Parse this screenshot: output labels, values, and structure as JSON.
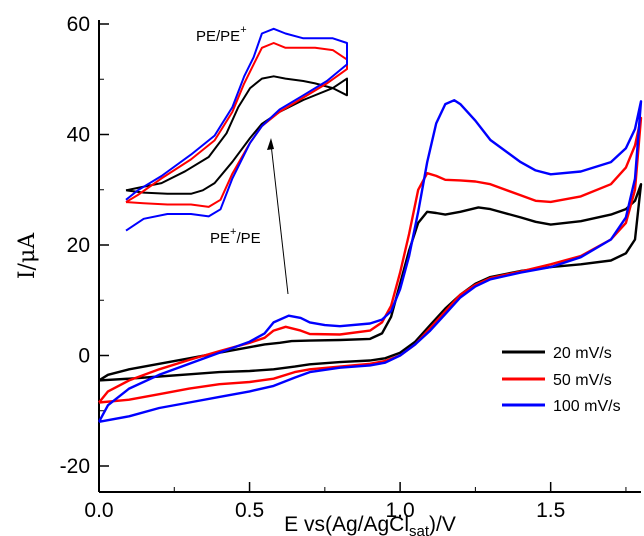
{
  "chart_data": [
    {
      "type": "line",
      "title": "",
      "xlabel": "E vs(Ag/AgCl",
      "xlabel_sub": "sat",
      "xlabel_end": ")/V",
      "ylabel": "I/μA",
      "xlim": [
        0.0,
        1.8
      ],
      "ylim": [
        -20,
        60
      ],
      "xticks": [
        "0.0",
        "0.5",
        "1.0",
        "1.5"
      ],
      "yticks": [
        "-20",
        "0",
        "20",
        "40",
        "60"
      ],
      "grid": false,
      "legend_position": "right-middle",
      "series": [
        {
          "name": "20 mV/s",
          "color": "#000000",
          "points": [
            [
              0.0,
              -4.5
            ],
            [
              0.1,
              -4.2
            ],
            [
              0.2,
              -3.8
            ],
            [
              0.3,
              -3.4
            ],
            [
              0.4,
              -3.0
            ],
            [
              0.5,
              -2.8
            ],
            [
              0.58,
              -2.5
            ],
            [
              0.65,
              -2.0
            ],
            [
              0.7,
              -1.6
            ],
            [
              0.8,
              -1.2
            ],
            [
              0.9,
              -0.9
            ],
            [
              0.95,
              -0.5
            ],
            [
              1.0,
              0.5
            ],
            [
              1.05,
              2.5
            ],
            [
              1.1,
              5.5
            ],
            [
              1.15,
              8.5
            ],
            [
              1.2,
              11.0
            ],
            [
              1.25,
              13.0
            ],
            [
              1.3,
              14.2
            ],
            [
              1.4,
              15.3
            ],
            [
              1.5,
              16.0
            ],
            [
              1.6,
              16.5
            ],
            [
              1.7,
              17.2
            ],
            [
              1.75,
              18.5
            ],
            [
              1.78,
              21.0
            ],
            [
              1.8,
              31.0
            ],
            [
              1.78,
              28.0
            ],
            [
              1.75,
              26.5
            ],
            [
              1.7,
              25.5
            ],
            [
              1.6,
              24.3
            ],
            [
              1.5,
              23.7
            ],
            [
              1.45,
              24.2
            ],
            [
              1.4,
              25.0
            ],
            [
              1.3,
              26.5
            ],
            [
              1.26,
              26.8
            ],
            [
              1.2,
              26.0
            ],
            [
              1.15,
              25.5
            ],
            [
              1.12,
              25.8
            ],
            [
              1.09,
              26.0
            ],
            [
              1.06,
              24.0
            ],
            [
              1.03,
              19.0
            ],
            [
              1.0,
              13.0
            ],
            [
              0.97,
              7.0
            ],
            [
              0.94,
              4.0
            ],
            [
              0.9,
              3.0
            ],
            [
              0.8,
              2.8
            ],
            [
              0.7,
              2.7
            ],
            [
              0.64,
              2.6
            ],
            [
              0.6,
              2.3
            ],
            [
              0.55,
              2.0
            ],
            [
              0.5,
              1.5
            ],
            [
              0.4,
              0.5
            ],
            [
              0.3,
              -0.5
            ],
            [
              0.2,
              -1.5
            ],
            [
              0.1,
              -2.5
            ],
            [
              0.03,
              -3.5
            ],
            [
              0.0,
              -4.5
            ]
          ]
        },
        {
          "name": "50 mV/s",
          "color": "#ff0000",
          "points": [
            [
              0.0,
              -8.5
            ],
            [
              0.1,
              -8.0
            ],
            [
              0.2,
              -7.0
            ],
            [
              0.3,
              -6.0
            ],
            [
              0.4,
              -5.2
            ],
            [
              0.5,
              -4.8
            ],
            [
              0.58,
              -4.2
            ],
            [
              0.65,
              -3.0
            ],
            [
              0.7,
              -2.5
            ],
            [
              0.8,
              -2.0
            ],
            [
              0.9,
              -1.5
            ],
            [
              0.95,
              -1.0
            ],
            [
              1.0,
              0.0
            ],
            [
              1.05,
              2.0
            ],
            [
              1.1,
              5.0
            ],
            [
              1.15,
              8.0
            ],
            [
              1.2,
              11.0
            ],
            [
              1.25,
              12.8
            ],
            [
              1.3,
              14.0
            ],
            [
              1.4,
              15.2
            ],
            [
              1.5,
              16.5
            ],
            [
              1.6,
              18.0
            ],
            [
              1.7,
              21.0
            ],
            [
              1.75,
              24.0
            ],
            [
              1.78,
              30.0
            ],
            [
              1.8,
              43.0
            ],
            [
              1.78,
              38.0
            ],
            [
              1.75,
              34.0
            ],
            [
              1.7,
              31.0
            ],
            [
              1.6,
              28.8
            ],
            [
              1.5,
              27.8
            ],
            [
              1.45,
              28.0
            ],
            [
              1.4,
              29.0
            ],
            [
              1.3,
              31.0
            ],
            [
              1.25,
              31.5
            ],
            [
              1.2,
              31.7
            ],
            [
              1.15,
              31.8
            ],
            [
              1.12,
              32.5
            ],
            [
              1.09,
              33.0
            ],
            [
              1.06,
              30.0
            ],
            [
              1.03,
              22.0
            ],
            [
              1.0,
              15.0
            ],
            [
              0.97,
              9.0
            ],
            [
              0.94,
              6.0
            ],
            [
              0.9,
              4.5
            ],
            [
              0.8,
              3.8
            ],
            [
              0.7,
              3.9
            ],
            [
              0.67,
              4.5
            ],
            [
              0.62,
              5.2
            ],
            [
              0.58,
              4.5
            ],
            [
              0.55,
              3.2
            ],
            [
              0.5,
              2.3
            ],
            [
              0.4,
              0.8
            ],
            [
              0.3,
              -0.8
            ],
            [
              0.2,
              -2.5
            ],
            [
              0.1,
              -4.5
            ],
            [
              0.03,
              -6.5
            ],
            [
              0.0,
              -8.5
            ]
          ]
        },
        {
          "name": "100 mV/s",
          "color": "#0000ff",
          "points": [
            [
              0.0,
              -12.0
            ],
            [
              0.1,
              -11.0
            ],
            [
              0.2,
              -9.5
            ],
            [
              0.3,
              -8.5
            ],
            [
              0.4,
              -7.5
            ],
            [
              0.5,
              -6.5
            ],
            [
              0.58,
              -5.5
            ],
            [
              0.65,
              -4.0
            ],
            [
              0.7,
              -3.0
            ],
            [
              0.8,
              -2.2
            ],
            [
              0.9,
              -1.8
            ],
            [
              0.95,
              -1.3
            ],
            [
              1.0,
              0.0
            ],
            [
              1.05,
              2.0
            ],
            [
              1.1,
              4.5
            ],
            [
              1.15,
              7.5
            ],
            [
              1.2,
              10.5
            ],
            [
              1.25,
              12.5
            ],
            [
              1.3,
              13.8
            ],
            [
              1.4,
              15.0
            ],
            [
              1.5,
              16.0
            ],
            [
              1.6,
              17.8
            ],
            [
              1.7,
              21.0
            ],
            [
              1.75,
              25.0
            ],
            [
              1.78,
              32.0
            ],
            [
              1.8,
              46.0
            ],
            [
              1.78,
              41.0
            ],
            [
              1.75,
              37.5
            ],
            [
              1.7,
              35.0
            ],
            [
              1.6,
              33.3
            ],
            [
              1.5,
              32.8
            ],
            [
              1.45,
              33.5
            ],
            [
              1.4,
              35.0
            ],
            [
              1.3,
              39.0
            ],
            [
              1.25,
              42.5
            ],
            [
              1.2,
              45.5
            ],
            [
              1.18,
              46.2
            ],
            [
              1.15,
              45.5
            ],
            [
              1.12,
              42.0
            ],
            [
              1.09,
              35.0
            ],
            [
              1.06,
              26.0
            ],
            [
              1.03,
              18.0
            ],
            [
              1.0,
              12.0
            ],
            [
              0.97,
              8.0
            ],
            [
              0.94,
              6.5
            ],
            [
              0.9,
              5.8
            ],
            [
              0.8,
              5.3
            ],
            [
              0.75,
              5.5
            ],
            [
              0.7,
              6.0
            ],
            [
              0.67,
              6.8
            ],
            [
              0.63,
              7.2
            ],
            [
              0.58,
              6.0
            ],
            [
              0.55,
              4.0
            ],
            [
              0.5,
              2.5
            ],
            [
              0.4,
              0.5
            ],
            [
              0.3,
              -1.5
            ],
            [
              0.2,
              -3.5
            ],
            [
              0.1,
              -6.0
            ],
            [
              0.03,
              -9.0
            ],
            [
              0.0,
              -12.0
            ]
          ]
        }
      ]
    },
    {
      "type": "line",
      "role": "inset",
      "annotations": {
        "top_label": "PE/PE",
        "top_label_sup": "+",
        "bottom_label": "PE",
        "bottom_label_sup": "+",
        "bottom_label_end": "/PE"
      },
      "series": [
        {
          "name": "20 mV/s",
          "color": "#000000",
          "points": [
            [
              0,
              10
            ],
            [
              15,
              9
            ],
            [
              35,
              8.5
            ],
            [
              55,
              8.5
            ],
            [
              65,
              10
            ],
            [
              75,
              13
            ],
            [
              90,
              22
            ],
            [
              105,
              32
            ],
            [
              115,
              38
            ],
            [
              130,
              43
            ],
            [
              150,
              48
            ],
            [
              175,
              53
            ],
            [
              187,
              57
            ],
            [
              187,
              50
            ],
            [
              175,
              53
            ],
            [
              160,
              55
            ],
            [
              150,
              56
            ],
            [
              135,
              57
            ],
            [
              125,
              58
            ],
            [
              115,
              57
            ],
            [
              105,
              53
            ],
            [
              95,
              45
            ],
            [
              85,
              34
            ],
            [
              70,
              24
            ],
            [
              50,
              18
            ],
            [
              30,
              13
            ],
            [
              10,
              11
            ],
            [
              0,
              10
            ]
          ]
        },
        {
          "name": "50 mV/s",
          "color": "#ff0000",
          "points": [
            [
              0,
              5
            ],
            [
              15,
              4.5
            ],
            [
              35,
              4
            ],
            [
              55,
              4
            ],
            [
              70,
              3
            ],
            [
              80,
              6
            ],
            [
              90,
              17
            ],
            [
              105,
              30
            ],
            [
              115,
              37
            ],
            [
              130,
              43
            ],
            [
              150,
              49
            ],
            [
              170,
              55
            ],
            [
              187,
              61
            ],
            [
              187,
              65
            ],
            [
              175,
              69
            ],
            [
              160,
              70
            ],
            [
              150,
              70
            ],
            [
              135,
              70
            ],
            [
              125,
              72
            ],
            [
              115,
              70
            ],
            [
              108,
              63
            ],
            [
              100,
              55
            ],
            [
              90,
              43
            ],
            [
              75,
              31
            ],
            [
              55,
              23
            ],
            [
              30,
              15
            ],
            [
              10,
              8
            ],
            [
              0,
              5
            ]
          ]
        },
        {
          "name": "100 mV/s",
          "color": "#0000ff",
          "points": [
            [
              0,
              -7
            ],
            [
              15,
              -2
            ],
            [
              35,
              0
            ],
            [
              55,
              0
            ],
            [
              70,
              -1
            ],
            [
              80,
              2
            ],
            [
              90,
              15
            ],
            [
              105,
              30
            ],
            [
              115,
              37
            ],
            [
              130,
              44
            ],
            [
              150,
              50
            ],
            [
              170,
              56
            ],
            [
              187,
              63
            ],
            [
              187,
              72
            ],
            [
              175,
              74
            ],
            [
              160,
              74
            ],
            [
              150,
              74
            ],
            [
              135,
              76
            ],
            [
              125,
              78
            ],
            [
              115,
              76
            ],
            [
              108,
              66
            ],
            [
              100,
              58
            ],
            [
              90,
              45
            ],
            [
              75,
              33
            ],
            [
              55,
              25
            ],
            [
              30,
              16
            ],
            [
              10,
              10
            ],
            [
              0,
              6
            ]
          ]
        }
      ]
    }
  ]
}
